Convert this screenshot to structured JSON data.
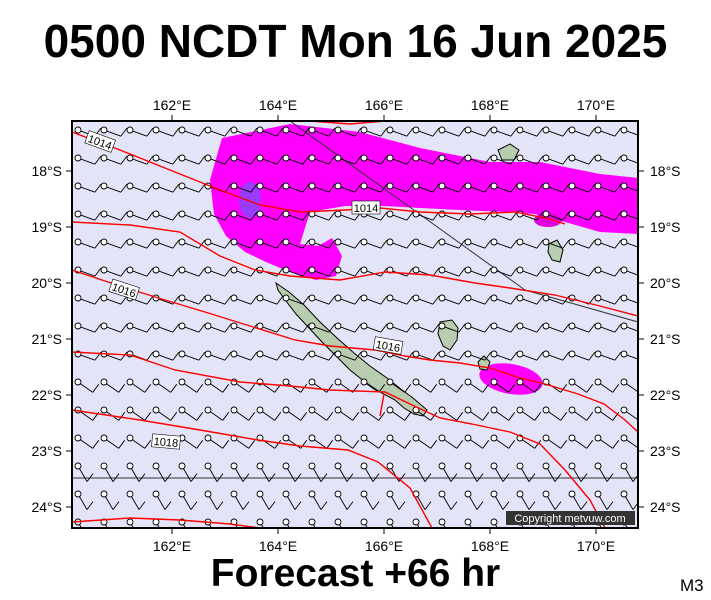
{
  "title": "0500 NCDT Mon 16 Jun 2025",
  "footer": "Forecast +66 hr",
  "product_code": "M3",
  "copyright": "Copyright metvuw.com",
  "lon_labels": [
    "162°E",
    "164°E",
    "166°E",
    "168°E",
    "170°E"
  ],
  "lat_labels": [
    "18°S",
    "19°S",
    "20°S",
    "21°S",
    "22°S",
    "23°S",
    "24°S"
  ],
  "isobar_labels": [
    "1014",
    "1014",
    "1016",
    "1016",
    "1018"
  ],
  "colors": {
    "sea": "#e4e4f8",
    "land": "#b8ccb0",
    "isobar": "#ff0000",
    "rain_light": "#ff00ff",
    "rain_heavy": "#9a3cff"
  }
}
